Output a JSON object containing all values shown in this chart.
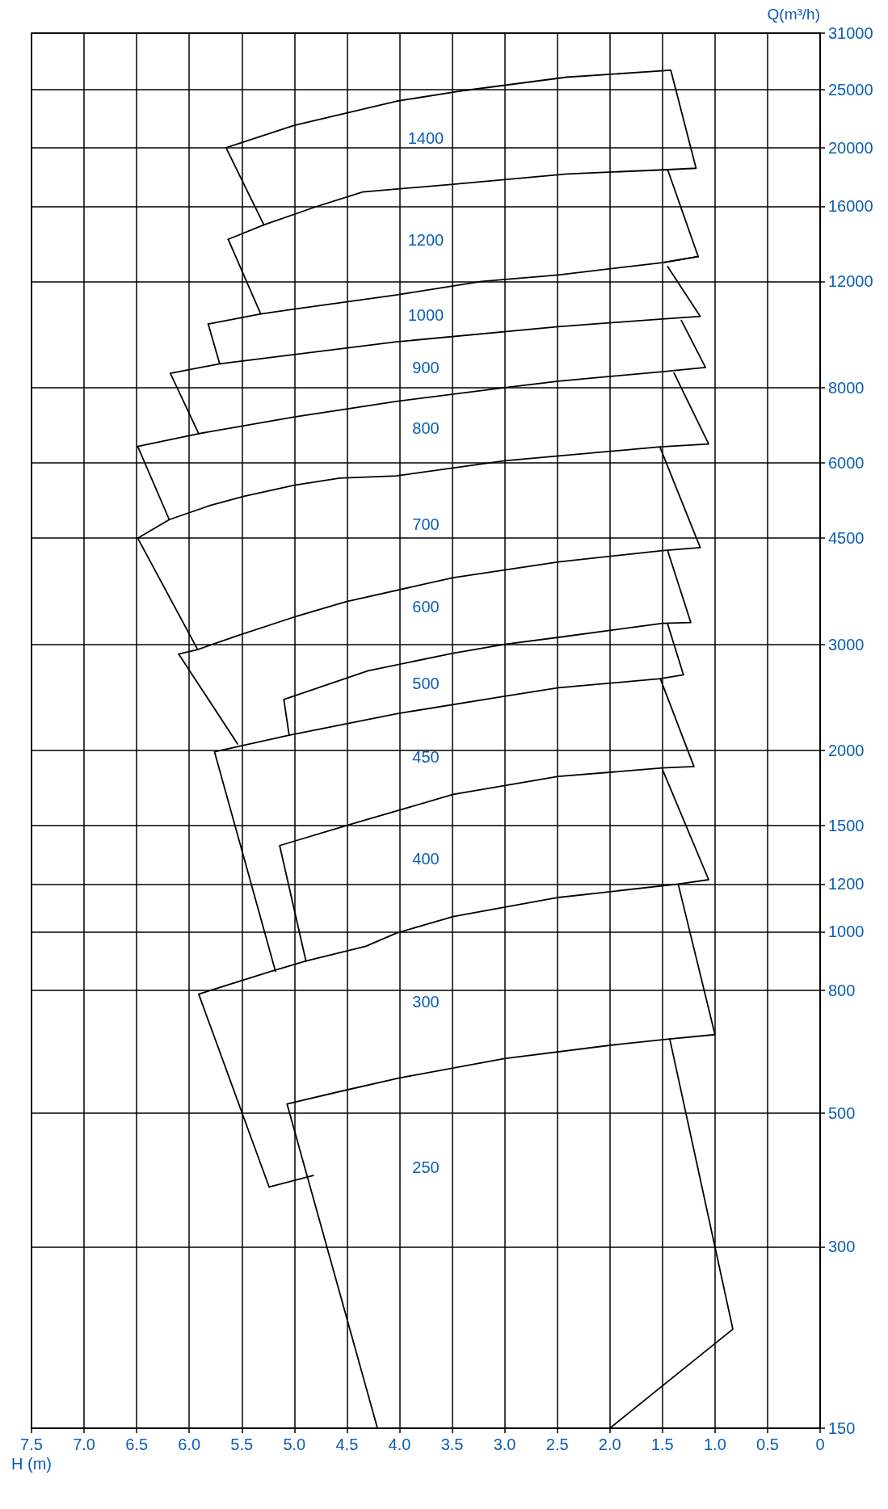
{
  "chart_data": {
    "type": "line",
    "xlabel": "H (m)",
    "ylabel": "Q(m³/h)",
    "log": "y",
    "grid": true,
    "marker": "none",
    "line_style": "solid",
    "ylim": [
      150,
      31000
    ],
    "yticks": [
      150,
      300,
      500,
      800,
      1000,
      1200,
      1500,
      2000,
      3000,
      4500,
      6000,
      8000,
      12000,
      16000,
      20000,
      25000,
      31000
    ],
    "xlim": [
      7.5,
      0
    ],
    "xticks": [
      0,
      0.5,
      {
        "value": 1,
        "label": "1.0"
      },
      1.5,
      {
        "value": 2,
        "label": "2.0"
      },
      2.5,
      {
        "value": 3,
        "label": "3.0"
      },
      3.5,
      {
        "value": 4,
        "label": "4.0"
      },
      4.5,
      {
        "value": 5,
        "label": "5.0"
      },
      5.5,
      {
        "value": 6,
        "label": "6.0"
      },
      6.5,
      {
        "value": 7,
        "label": "7.0"
      },
      7.5
    ],
    "series": [
      {
        "color": "#000000",
        "values": [
          14900,
          20000,
          21800,
          23900,
          24900,
          26200,
          26900,
          18500,
          18400
        ],
        "x": [
          5.29,
          5.65,
          5.0,
          4.03,
          3.38,
          2.41,
          1.42,
          1.18,
          1.45
        ]
      },
      {
        "color": "#000000",
        "values": [
          14100,
          14900,
          16000,
          16900,
          17400,
          18100,
          18400,
          13200,
          12900
        ],
        "x": [
          5.63,
          5.29,
          4.78,
          4.35,
          3.49,
          2.41,
          1.45,
          1.16,
          1.5
        ]
      },
      {
        "color": "#000000",
        "values": [
          14100,
          10600
        ],
        "x": [
          5.63,
          5.32
        ]
      },
      {
        "color": "#000000",
        "values": [
          10200,
          10600,
          10800,
          11400,
          12000,
          12300,
          12900,
          13200
        ],
        "x": [
          5.82,
          5.32,
          5.0,
          4.03,
          3.22,
          2.49,
          1.5,
          1.16
        ]
      },
      {
        "color": "#000000",
        "values": [
          10200,
          8760
        ],
        "x": [
          5.82,
          5.71
        ]
      },
      {
        "color": "#000000",
        "values": [
          8450,
          8760,
          9530,
          10100,
          10400,
          10500,
          12700
        ],
        "x": [
          6.18,
          5.71,
          4.03,
          2.49,
          1.5,
          1.14,
          1.45
        ]
      },
      {
        "color": "#000000",
        "values": [
          8450,
          6710
        ],
        "x": [
          6.18,
          5.91
        ]
      },
      {
        "color": "#000000",
        "values": [
          6390,
          6710,
          7150,
          7590,
          8000,
          8200,
          8500,
          8640,
          10340
        ],
        "x": [
          6.49,
          5.91,
          5.0,
          4.03,
          3.0,
          2.49,
          1.5,
          1.09,
          1.32
        ]
      },
      {
        "color": "#000000",
        "values": [
          6390,
          4830
        ],
        "x": [
          6.49,
          6.19
        ]
      },
      {
        "color": "#000000",
        "values": [
          4500,
          4830,
          5100,
          5280,
          5510,
          5660,
          5710,
          6050,
          6380,
          6450,
          8460
        ],
        "x": [
          6.49,
          6.19,
          5.8,
          5.48,
          5.0,
          4.57,
          4.03,
          3.0,
          1.52,
          1.06,
          1.39
        ]
      },
      {
        "color": "#000000",
        "values": [
          6350,
          4340,
          4290,
          4110,
          3870,
          3530,
          3330,
          3100,
          2940,
          2890
        ],
        "x": [
          1.52,
          1.14,
          1.5,
          2.49,
          3.49,
          4.51,
          5.0,
          5.54,
          5.92,
          6.1
        ]
      },
      {
        "color": "#000000",
        "values": [
          4500,
          2940
        ],
        "x": [
          6.49,
          5.92
        ]
      },
      {
        "color": "#000000",
        "values": [
          2890,
          2050
        ],
        "x": [
          6.1,
          5.54
        ]
      },
      {
        "color": "#000000",
        "values": [
          4290,
          3260,
          3250,
          3080,
          3000,
          2900,
          2710,
          2430,
          2120
        ],
        "x": [
          1.45,
          1.23,
          1.5,
          2.49,
          3.0,
          3.49,
          4.3,
          5.1,
          5.05
        ]
      },
      {
        "color": "#000000",
        "values": [
          3240,
          2670,
          2630,
          2540,
          2460,
          2300,
          2120,
          1990,
          860
        ],
        "x": [
          1.45,
          1.3,
          1.52,
          2.49,
          3.0,
          4.03,
          5.05,
          5.76,
          5.18
        ]
      },
      {
        "color": "#000000",
        "values": [
          2630,
          1880,
          1870,
          1810,
          1690,
          1500,
          1390,
          894
        ],
        "x": [
          1.52,
          1.2,
          1.5,
          2.49,
          3.49,
          4.51,
          5.14,
          4.89
        ]
      },
      {
        "color": "#000000",
        "values": [
          1860,
          1220,
          1200,
          1140,
          1060,
          995,
          946,
          894,
          860,
          788,
          377,
          394
        ],
        "x": [
          1.5,
          1.06,
          1.35,
          2.49,
          3.49,
          4.03,
          4.32,
          4.89,
          5.22,
          5.91,
          5.24,
          4.82
        ]
      },
      {
        "color": "#000000",
        "values": [
          1200,
          675,
          664,
          648,
          616,
          572,
          543,
          518,
          150
        ],
        "x": [
          1.35,
          1.0,
          1.43,
          2.0,
          3.0,
          4.0,
          4.57,
          5.07,
          4.21
        ]
      },
      {
        "color": "#000000",
        "values": [
          664,
          219,
          150
        ],
        "x": [
          1.43,
          0.83,
          2.0
        ]
      }
    ],
    "annotations": [
      "250",
      "300",
      "400",
      "450",
      "500",
      "600",
      "700",
      "800",
      "900",
      "1000",
      "1200",
      "1400"
    ]
  }
}
